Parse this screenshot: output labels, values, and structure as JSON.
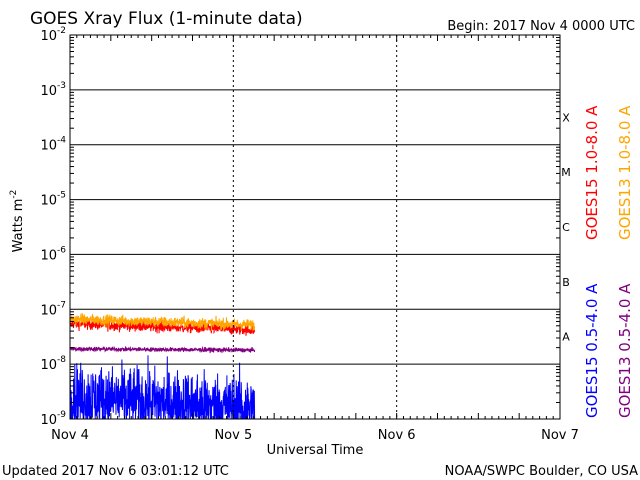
{
  "header": {
    "title": "GOES Xray Flux (1-minute data)",
    "begin": "Begin:  2017 Nov 4 0000 UTC"
  },
  "footer": {
    "updated": "Updated 2017 Nov  6 03:01:12 UTC",
    "credit": "NOAA/SWPC Boulder, CO USA"
  },
  "chart_data": {
    "type": "line",
    "title": "GOES Xray Flux (1-minute data)",
    "xlabel": "Universal Time",
    "ylabel": "Watts m",
    "ylabel_sup": "-2",
    "yscale": "log",
    "ylim": [
      1e-09,
      0.01
    ],
    "xlim_days": [
      0,
      3
    ],
    "x_ticks": [
      "Nov 4",
      "Nov 5",
      "Nov 6",
      "Nov 7"
    ],
    "y_ticks": [
      {
        "base": "10",
        "exp": "-9"
      },
      {
        "base": "10",
        "exp": "-8"
      },
      {
        "base": "10",
        "exp": "-7"
      },
      {
        "base": "10",
        "exp": "-6"
      },
      {
        "base": "10",
        "exp": "-5"
      },
      {
        "base": "10",
        "exp": "-4"
      },
      {
        "base": "10",
        "exp": "-3"
      },
      {
        "base": "10",
        "exp": "-2"
      }
    ],
    "flare_classes": [
      "A",
      "B",
      "C",
      "M",
      "X"
    ],
    "grid": true,
    "data_end_day": 1.13,
    "series": [
      {
        "name": "GOES15 1.0-8.0 A",
        "color": "#ff0000",
        "level_start": 5.5e-08,
        "level_end": 4.2e-08,
        "noise_dex": 0.05
      },
      {
        "name": "GOES13 1.0-8.0 A",
        "color": "#ffa500",
        "level_start": 6.6e-08,
        "level_end": 5.2e-08,
        "noise_dex": 0.05
      },
      {
        "name": "GOES15 0.5-4.0 A",
        "color": "#0000ff",
        "level_start": 2.6e-09,
        "level_end": 1.6e-09,
        "noise_dex": 0.3
      },
      {
        "name": "GOES13 0.5-4.0 A",
        "color": "#800080",
        "level_start": 1.9e-08,
        "level_end": 1.8e-08,
        "noise_dex": 0.02
      }
    ]
  }
}
